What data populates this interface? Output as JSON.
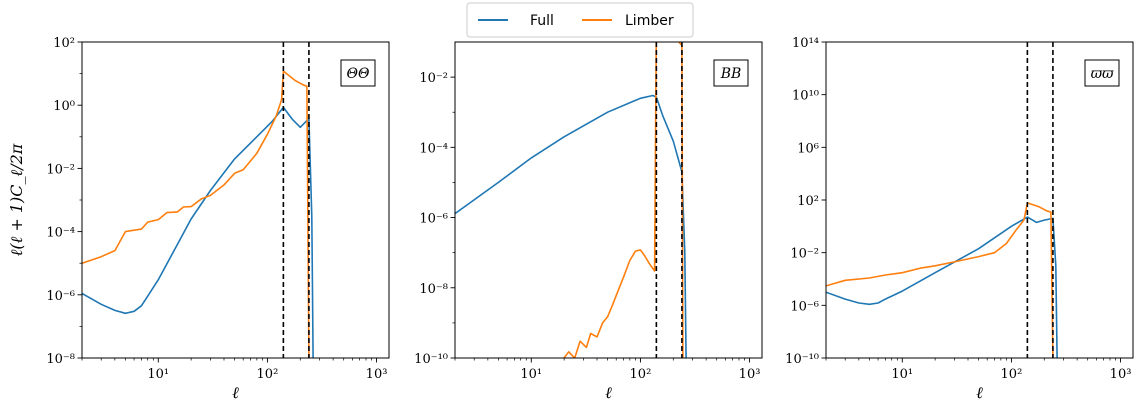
{
  "colors": {
    "full": "#1f77b4",
    "limber": "#ff7f0e",
    "vline": "#000000"
  },
  "legend": {
    "placement": "top-center",
    "items": [
      "Full",
      "Limber"
    ]
  },
  "chart_data": [
    {
      "type": "line",
      "panel_label": "ΘΘ",
      "xlabel": "ℓ",
      "ylabel": "ℓ(ℓ + 1)C_ℓ/2π",
      "xscale": "log",
      "yscale": "log",
      "xlim": [
        2,
        1300
      ],
      "ylim": [
        1e-08,
        100
      ],
      "xticks": [
        10,
        100,
        1000
      ],
      "xtick_labels": [
        "10¹",
        "10²",
        "10³"
      ],
      "yticks": [
        1e-08,
        1e-06,
        0.0001,
        0.01,
        1,
        100
      ],
      "ytick_labels": [
        "10⁻⁸",
        "10⁻⁶",
        "10⁻⁴",
        "10⁻²",
        "10⁰",
        "10²"
      ],
      "vlines": [
        140,
        240
      ],
      "series": [
        {
          "name": "Full",
          "points": [
            [
              2,
              1.1e-06
            ],
            [
              3,
              5e-07
            ],
            [
              4,
              3.2e-07
            ],
            [
              5,
              2.6e-07
            ],
            [
              6,
              3e-07
            ],
            [
              7,
              4.5e-07
            ],
            [
              8,
              9e-07
            ],
            [
              10,
              3e-06
            ],
            [
              15,
              4e-05
            ],
            [
              20,
              0.00025
            ],
            [
              30,
              0.002
            ],
            [
              50,
              0.02
            ],
            [
              80,
              0.1
            ],
            [
              110,
              0.3
            ],
            [
              140,
              0.85
            ],
            [
              170,
              0.35
            ],
            [
              200,
              0.2
            ],
            [
              240,
              0.38
            ],
            [
              255,
              0.0003
            ],
            [
              262,
              1e-08
            ]
          ]
        },
        {
          "name": "Limber",
          "points": [
            [
              2,
              1e-05
            ],
            [
              3,
              1.6e-05
            ],
            [
              4,
              2.5e-05
            ],
            [
              5,
              0.0001
            ],
            [
              7,
              0.00012
            ],
            [
              8,
              0.0002
            ],
            [
              10,
              0.00024
            ],
            [
              12,
              0.0004
            ],
            [
              15,
              0.00042
            ],
            [
              17,
              0.0006
            ],
            [
              20,
              0.00062
            ],
            [
              25,
              0.0011
            ],
            [
              30,
              0.0014
            ],
            [
              40,
              0.003
            ],
            [
              50,
              0.007
            ],
            [
              60,
              0.009
            ],
            [
              80,
              0.03
            ],
            [
              100,
              0.12
            ],
            [
              120,
              0.45
            ],
            [
              135,
              1.5
            ],
            [
              140,
              12
            ],
            [
              180,
              6
            ],
            [
              210,
              4.5
            ],
            [
              230,
              4
            ],
            [
              240,
              1e-08
            ]
          ]
        }
      ]
    },
    {
      "type": "line",
      "panel_label": "BB",
      "xlabel": "ℓ",
      "xscale": "log",
      "yscale": "log",
      "xlim": [
        2,
        1300
      ],
      "ylim": [
        1e-10,
        0.1
      ],
      "xticks": [
        10,
        100,
        1000
      ],
      "xtick_labels": [
        "10¹",
        "10²",
        "10³"
      ],
      "yticks": [
        1e-10,
        1e-08,
        1e-06,
        0.0001,
        0.01
      ],
      "ytick_labels": [
        "10⁻¹⁰",
        "10⁻⁸",
        "10⁻⁶",
        "10⁻⁴",
        "10⁻²"
      ],
      "vlines": [
        140,
        240
      ],
      "series": [
        {
          "name": "Full",
          "points": [
            [
              2,
              1.3e-06
            ],
            [
              5,
              1e-05
            ],
            [
              10,
              5e-05
            ],
            [
              20,
              0.0002
            ],
            [
              50,
              0.001
            ],
            [
              100,
              0.0025
            ],
            [
              130,
              0.003
            ],
            [
              140,
              0.0027
            ],
            [
              160,
              0.0008
            ],
            [
              200,
              0.00015
            ],
            [
              240,
              2e-05
            ],
            [
              255,
              1e-07
            ],
            [
              262,
              1e-10
            ]
          ]
        },
        {
          "name": "Limber",
          "points": [
            [
              20,
              1e-10
            ],
            [
              22,
              1.5e-10
            ],
            [
              25,
              1e-10
            ],
            [
              28,
              3e-10
            ],
            [
              32,
              2e-10
            ],
            [
              35,
              5e-10
            ],
            [
              40,
              4e-10
            ],
            [
              45,
              1e-09
            ],
            [
              50,
              1.5e-09
            ],
            [
              55,
              3e-09
            ],
            [
              60,
              6e-09
            ],
            [
              70,
              2e-08
            ],
            [
              80,
              6e-08
            ],
            [
              90,
              1.1e-07
            ],
            [
              100,
              1.2e-07
            ],
            [
              110,
              8e-08
            ],
            [
              120,
              5e-08
            ],
            [
              135,
              3e-08
            ],
            [
              140,
              0.5
            ],
            [
              240,
              0.08
            ],
            [
              245,
              1e-10
            ]
          ]
        }
      ]
    },
    {
      "type": "line",
      "panel_label": "ϖϖ",
      "xlabel": "ℓ",
      "xscale": "log",
      "yscale": "log",
      "xlim": [
        2,
        1300
      ],
      "ylim": [
        1e-10,
        100000000000000.0
      ],
      "xticks": [
        10,
        100,
        1000
      ],
      "xtick_labels": [
        "10¹",
        "10²",
        "10³"
      ],
      "yticks": [
        1e-10,
        1e-06,
        0.01,
        100,
        1000000.0,
        10000000000.0,
        100000000000000.0
      ],
      "ytick_labels": [
        "10⁻¹⁰",
        "10⁻⁶",
        "10⁻²",
        "10²",
        "10⁶",
        "10¹⁰",
        "10¹⁴"
      ],
      "vlines": [
        140,
        240
      ],
      "series": [
        {
          "name": "Full",
          "points": [
            [
              2,
              1e-05
            ],
            [
              3,
              3e-06
            ],
            [
              4,
              1.5e-06
            ],
            [
              5,
              1.2e-06
            ],
            [
              6,
              1.5e-06
            ],
            [
              7,
              3e-06
            ],
            [
              8,
              5e-06
            ],
            [
              10,
              1.2e-05
            ],
            [
              20,
              0.0003
            ],
            [
              50,
              0.02
            ],
            [
              100,
              1
            ],
            [
              140,
              5
            ],
            [
              170,
              2
            ],
            [
              200,
              3
            ],
            [
              240,
              4
            ],
            [
              255,
              0.001
            ],
            [
              262,
              1e-10
            ]
          ]
        },
        {
          "name": "Limber",
          "points": [
            [
              2,
              3e-05
            ],
            [
              3,
              8e-05
            ],
            [
              5,
              0.00012
            ],
            [
              7,
              0.0002
            ],
            [
              10,
              0.0003
            ],
            [
              15,
              0.0007
            ],
            [
              20,
              0.001
            ],
            [
              30,
              0.002
            ],
            [
              50,
              0.005
            ],
            [
              70,
              0.01
            ],
            [
              90,
              0.05
            ],
            [
              110,
              0.5
            ],
            [
              130,
              3
            ],
            [
              140,
              60
            ],
            [
              180,
              30
            ],
            [
              210,
              15
            ],
            [
              230,
              12
            ],
            [
              240,
              1e-10
            ]
          ]
        }
      ]
    }
  ]
}
